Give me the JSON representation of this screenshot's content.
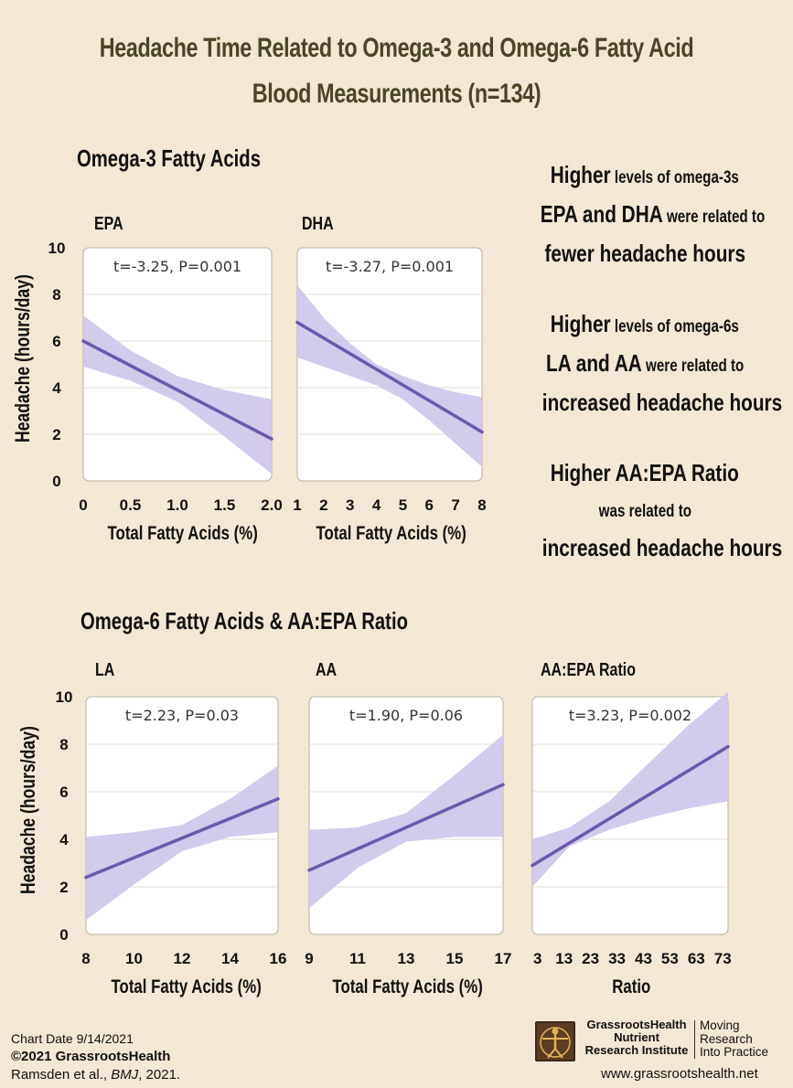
{
  "title": {
    "line1": "Headache Time Related to Omega-3 and Omega-6 Fatty Acid",
    "line2": "Blood Measurements (n=134)"
  },
  "sections": {
    "omega3": "Omega-3 Fatty Acids",
    "omega6": "Omega-6 Fatty Acids & AA:EPA Ratio"
  },
  "ylabel": "Headache (hours/day)",
  "colors": {
    "line": "#6a5aad",
    "band": "#cdc5ea",
    "background": "#f3e7d5",
    "title": "#4a4528"
  },
  "notes": [
    {
      "a": "Higher",
      "b": " levels of omega-3s",
      "c": "EPA and DHA",
      "d": " were related to",
      "e": "fewer headache hours"
    },
    {
      "a": "Higher",
      "b": " levels of omega-6s",
      "c": "LA and AA",
      "d": " were related to",
      "e": "increased headache hours"
    },
    {
      "a": "Higher AA:EPA Ratio",
      "b": "was related to",
      "c": "increased headache hours"
    }
  ],
  "footer": {
    "date": "Chart Date 9/14/2021",
    "copyright": "©2021 GrassrootsHealth",
    "cite_a": "Ramsden et al., ",
    "cite_j": "BMJ",
    "cite_b": ", 2021.",
    "org1": "GrassrootsHealth",
    "org2": "Nutrient",
    "org3": "Research Institute",
    "tag1": "Moving",
    "tag2": "Research",
    "tag3": "Into Practice",
    "url": "www.grassrootshealth.net"
  },
  "chart_data": [
    {
      "type": "line",
      "name": "EPA",
      "stat": "t=-3.25, P=0.001",
      "xlabel": "Total Fatty Acids (%)",
      "ylabel": "Headache (hours/day)",
      "xlim": [
        0,
        2.0
      ],
      "ylim": [
        0,
        10
      ],
      "xticks": [
        "0",
        "0.5",
        "1.0",
        "1.5",
        "2.0"
      ],
      "xtick_vals": [
        0,
        0.5,
        1.0,
        1.5,
        2.0
      ],
      "yticks": [
        "0",
        "2",
        "4",
        "6",
        "8",
        "10"
      ],
      "x": [
        0,
        2.0
      ],
      "y": [
        6.0,
        1.8
      ],
      "band_x": [
        0,
        0.5,
        1.0,
        1.5,
        2.0
      ],
      "band_upper": [
        7.1,
        5.6,
        4.5,
        3.9,
        3.5
      ],
      "band_lower": [
        4.9,
        4.3,
        3.4,
        1.9,
        0.3
      ]
    },
    {
      "type": "line",
      "name": "DHA",
      "stat": "t=-3.27, P=0.001",
      "xlabel": "Total Fatty Acids (%)",
      "ylabel": "",
      "xlim": [
        1,
        8
      ],
      "ylim": [
        0,
        10
      ],
      "xticks": [
        "1",
        "2",
        "3",
        "4",
        "5",
        "6",
        "7",
        "8"
      ],
      "xtick_vals": [
        1,
        2,
        3,
        4,
        5,
        6,
        7,
        8
      ],
      "x": [
        1,
        8
      ],
      "y": [
        6.8,
        2.1
      ],
      "band_x": [
        1,
        2,
        3,
        4,
        5,
        6,
        7,
        8
      ],
      "band_upper": [
        8.4,
        7.0,
        5.9,
        5.0,
        4.5,
        4.1,
        3.8,
        3.6
      ],
      "band_lower": [
        5.3,
        4.9,
        4.5,
        4.1,
        3.5,
        2.6,
        1.6,
        0.6
      ]
    },
    {
      "type": "line",
      "name": "LA",
      "stat": "t=2.23, P=0.03",
      "xlabel": "Total Fatty Acids (%)",
      "ylabel": "Headache (hours/day)",
      "xlim": [
        8,
        16
      ],
      "ylim": [
        0,
        10
      ],
      "xticks": [
        "8",
        "10",
        "12",
        "14",
        "16"
      ],
      "xtick_vals": [
        8,
        10,
        12,
        14,
        16
      ],
      "yticks": [
        "0",
        "2",
        "4",
        "6",
        "8",
        "10"
      ],
      "x": [
        8,
        16
      ],
      "y": [
        2.4,
        5.7
      ],
      "band_x": [
        8,
        10,
        12,
        14,
        16
      ],
      "band_upper": [
        4.1,
        4.3,
        4.6,
        5.7,
        7.1
      ],
      "band_lower": [
        0.6,
        2.1,
        3.5,
        4.1,
        4.3
      ]
    },
    {
      "type": "line",
      "name": "AA",
      "stat": "t=1.90, P=0.06",
      "xlabel": "Total Fatty Acids (%)",
      "ylabel": "",
      "xlim": [
        9,
        17
      ],
      "ylim": [
        0,
        10
      ],
      "xticks": [
        "9",
        "11",
        "13",
        "15",
        "17"
      ],
      "xtick_vals": [
        9,
        11,
        13,
        15,
        17
      ],
      "x": [
        9,
        17
      ],
      "y": [
        2.7,
        6.3
      ],
      "band_x": [
        9,
        11,
        13,
        15,
        17
      ],
      "band_upper": [
        4.4,
        4.5,
        5.1,
        6.7,
        8.4
      ],
      "band_lower": [
        1.1,
        2.8,
        3.9,
        4.1,
        4.1
      ]
    },
    {
      "type": "line",
      "name": "AA:EPA Ratio",
      "stat": "t=3.23, P=0.002",
      "xlabel": "Ratio",
      "ylabel": "",
      "xlim": [
        1,
        75
      ],
      "ylim": [
        0,
        10
      ],
      "xticks": [
        "3",
        "13",
        "23",
        "33",
        "43",
        "53",
        "63",
        "73"
      ],
      "xtick_vals": [
        3,
        13,
        23,
        33,
        43,
        53,
        63,
        73
      ],
      "x": [
        1,
        75
      ],
      "y": [
        2.9,
        7.9
      ],
      "band_x": [
        1,
        15,
        30,
        45,
        60,
        75
      ],
      "band_upper": [
        4.0,
        4.5,
        5.6,
        7.2,
        8.8,
        10.2
      ],
      "band_lower": [
        2.0,
        3.7,
        4.4,
        4.9,
        5.3,
        5.6
      ]
    }
  ]
}
